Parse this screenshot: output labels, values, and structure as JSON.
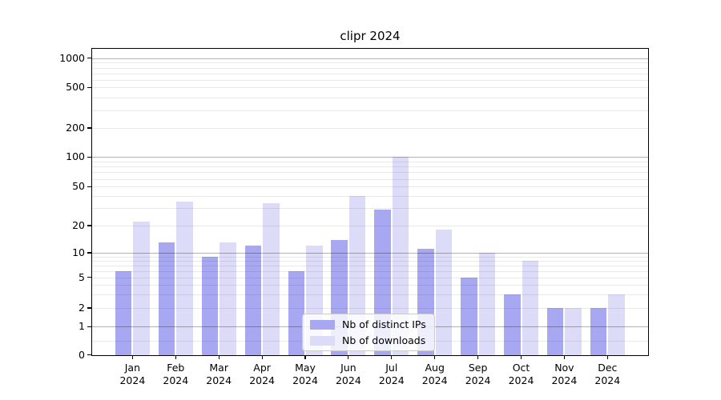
{
  "title": "clipr 2024",
  "chart_data": {
    "type": "bar",
    "title": "clipr 2024",
    "categories": [
      "Jan 2024",
      "Feb 2024",
      "Mar 2024",
      "Apr 2024",
      "May 2024",
      "Jun 2024",
      "Jul 2024",
      "Aug 2024",
      "Sep 2024",
      "Oct 2024",
      "Nov 2024",
      "Dec 2024"
    ],
    "series": [
      {
        "name": "Nb of distinct IPs",
        "color": "#a8a8f2",
        "values": [
          6,
          13,
          9,
          12,
          6,
          14,
          29,
          11,
          5,
          3,
          2,
          2
        ]
      },
      {
        "name": "Nb of downloads",
        "color": "#dcdcf8",
        "values": [
          22,
          35,
          13,
          34,
          12,
          40,
          100,
          18,
          10,
          8,
          2,
          3
        ]
      }
    ],
    "xlabel": "",
    "ylabel": "",
    "yscale": "symlog",
    "ylim": [
      0,
      1300
    ],
    "y_tick_labels": [
      "0",
      "1",
      "2",
      "5",
      "10",
      "20",
      "50",
      "100",
      "200",
      "500",
      "1000"
    ],
    "grid": "both, horizontal only, drawn over bars",
    "legend_position": "lower center inside plot"
  },
  "legend": {
    "entries": [
      {
        "label": "Nb of distinct IPs",
        "color": "#a8a8f2"
      },
      {
        "label": "Nb of downloads",
        "color": "#dcdcf8"
      }
    ]
  }
}
